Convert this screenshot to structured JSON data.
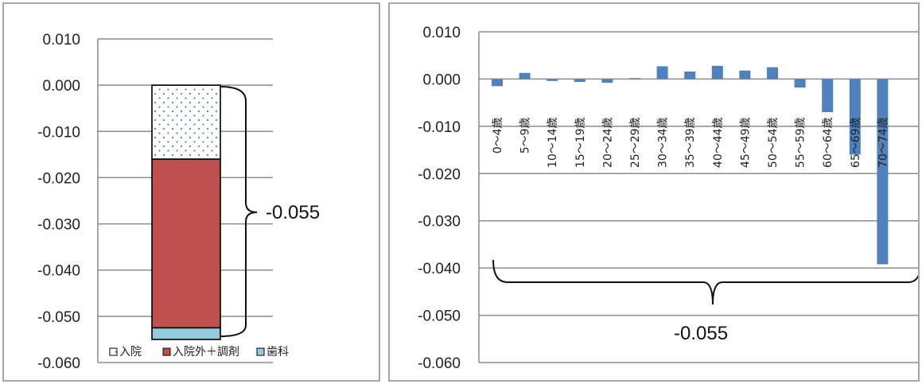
{
  "chart_data": [
    {
      "type": "bar",
      "stacked": true,
      "yticks": [
        "0.010",
        "0.000",
        "-0.010",
        "-0.020",
        "-0.030",
        "-0.040",
        "-0.050",
        "-0.060"
      ],
      "ylim": [
        -0.06,
        0.01
      ],
      "grid": true,
      "legend_position": "bottom",
      "series": [
        {
          "name": "入院",
          "value": -0.016,
          "color": "#dce6f2",
          "pattern": "dots"
        },
        {
          "name": "入院外＋調剤",
          "value": -0.0365,
          "color": "#c0504d"
        },
        {
          "name": "歯科",
          "value": -0.0025,
          "color": "#93cddd"
        }
      ],
      "annotation": "-0.055"
    },
    {
      "type": "bar",
      "categories": [
        "0～4歳",
        "5～9歳",
        "10～14歳",
        "15～19歳",
        "20～24歳",
        "25～29歳",
        "30～34歳",
        "35～39歳",
        "40～44歳",
        "45～49歳",
        "50～54歳",
        "55～59歳",
        "60～64歳",
        "65～69歳",
        "70～74歳"
      ],
      "values": [
        -0.0015,
        0.0013,
        -0.0004,
        -0.0006,
        -0.0008,
        0.0002,
        0.0027,
        0.0016,
        0.0028,
        0.0018,
        0.0025,
        -0.0018,
        -0.007,
        -0.016,
        -0.0392
      ],
      "yticks": [
        "0.010",
        "0.000",
        "-0.010",
        "-0.020",
        "-0.030",
        "-0.040",
        "-0.050",
        "-0.060"
      ],
      "ylim": [
        -0.06,
        0.01
      ],
      "grid": true,
      "bar_color": "#4f81bd",
      "annotation": "-0.055"
    }
  ]
}
